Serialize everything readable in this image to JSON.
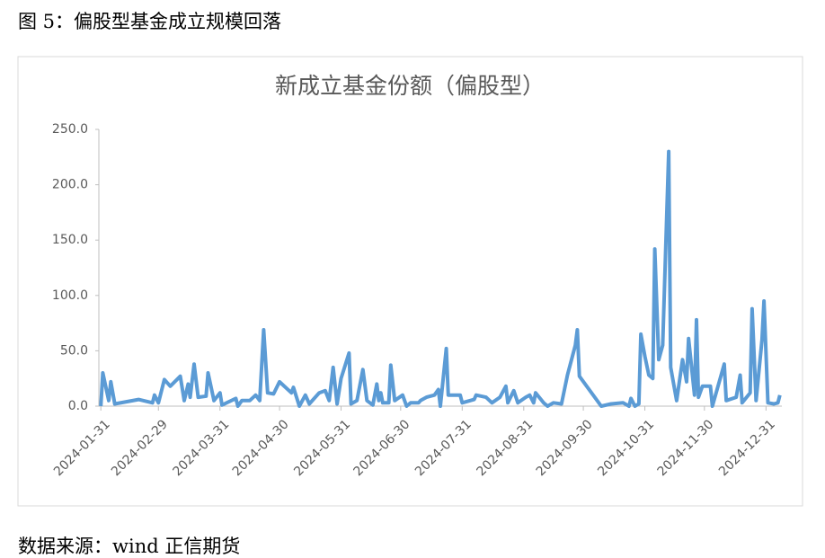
{
  "figure_title": "图 5：偏股型基金成立规模回落",
  "source": "数据来源：wind 正信期货",
  "chart_data": {
    "type": "line",
    "title": "新成立基金份额（偏股型）",
    "xlim": [
      "2024-01-30",
      "2025-01-08"
    ],
    "xticks": [
      "2024-01-31",
      "2024-02-29",
      "2024-03-31",
      "2024-04-30",
      "2024-05-31",
      "2024-06-30",
      "2024-07-31",
      "2024-08-31",
      "2024-09-30",
      "2024-10-31",
      "2024-11-30",
      "2024-12-31"
    ],
    "ylim": [
      0,
      250
    ],
    "yticks": [
      {
        "value": 0,
        "label": "0.0"
      },
      {
        "value": 50,
        "label": "50.0"
      },
      {
        "value": 100,
        "label": "100.0"
      },
      {
        "value": 150,
        "label": "150.0"
      },
      {
        "value": 200,
        "label": "200.0"
      },
      {
        "value": 250,
        "label": "250.0"
      }
    ],
    "grid": false,
    "color": "#5b9bd5",
    "x": [
      "2024-01-31",
      "2024-02-01",
      "2024-02-04",
      "2024-02-05",
      "2024-02-07",
      "2024-02-19",
      "2024-02-26",
      "2024-02-27",
      "2024-02-29",
      "2024-03-03",
      "2024-03-06",
      "2024-03-11",
      "2024-03-13",
      "2024-03-15",
      "2024-03-16",
      "2024-03-18",
      "2024-03-20",
      "2024-03-24",
      "2024-03-25",
      "2024-03-28",
      "2024-03-31",
      "2024-04-01",
      "2024-04-08",
      "2024-04-09",
      "2024-04-11",
      "2024-04-15",
      "2024-04-18",
      "2024-04-20",
      "2024-04-22",
      "2024-04-24",
      "2024-04-27",
      "2024-04-30",
      "2024-05-06",
      "2024-05-07",
      "2024-05-10",
      "2024-05-13",
      "2024-05-15",
      "2024-05-20",
      "2024-05-23",
      "2024-05-25",
      "2024-05-27",
      "2024-05-29",
      "2024-05-31",
      "2024-06-04",
      "2024-06-05",
      "2024-06-08",
      "2024-06-11",
      "2024-06-13",
      "2024-06-16",
      "2024-06-18",
      "2024-06-19",
      "2024-06-20",
      "2024-06-21",
      "2024-06-24",
      "2024-06-25",
      "2024-06-27",
      "2024-07-01",
      "2024-07-03",
      "2024-07-05",
      "2024-07-09",
      "2024-07-10",
      "2024-07-13",
      "2024-07-17",
      "2024-07-19",
      "2024-07-20",
      "2024-07-23",
      "2024-07-24",
      "2024-07-30",
      "2024-07-31",
      "2024-08-06",
      "2024-08-07",
      "2024-08-12",
      "2024-08-15",
      "2024-08-19",
      "2024-08-22",
      "2024-08-23",
      "2024-08-26",
      "2024-08-28",
      "2024-09-01",
      "2024-09-03",
      "2024-09-05",
      "2024-09-06",
      "2024-09-10",
      "2024-09-12",
      "2024-09-15",
      "2024-09-19",
      "2024-09-22",
      "2024-09-26",
      "2024-09-27",
      "2024-09-28",
      "2024-10-09",
      "2024-10-14",
      "2024-10-20",
      "2024-10-23",
      "2024-10-24",
      "2024-10-26",
      "2024-10-28",
      "2024-10-29",
      "2024-10-31",
      "2024-11-02",
      "2024-11-04",
      "2024-11-05",
      "2024-11-07",
      "2024-11-09",
      "2024-11-12",
      "2024-11-13",
      "2024-11-16",
      "2024-11-19",
      "2024-11-21",
      "2024-11-22",
      "2024-11-25",
      "2024-11-26",
      "2024-11-27",
      "2024-11-29",
      "2024-12-03",
      "2024-12-04",
      "2024-12-10",
      "2024-12-11",
      "2024-12-16",
      "2024-12-18",
      "2024-12-19",
      "2024-12-23",
      "2024-12-24",
      "2024-12-26",
      "2024-12-29",
      "2024-12-30",
      "2025-01-01",
      "2025-01-04",
      "2025-01-06",
      "2025-01-07"
    ],
    "values": [
      0,
      30,
      5,
      22,
      2,
      6,
      3,
      10,
      3,
      24,
      18,
      27,
      5,
      20,
      8,
      38,
      8,
      9,
      30,
      5,
      12,
      1,
      7,
      0,
      5,
      5,
      10,
      5,
      69,
      12,
      11,
      22,
      12,
      17,
      0,
      10,
      2,
      12,
      14,
      5,
      35,
      2,
      25,
      48,
      2,
      5,
      33,
      5,
      1,
      20,
      5,
      12,
      3,
      3,
      37,
      5,
      10,
      0,
      3,
      3,
      5,
      8,
      10,
      15,
      0,
      52,
      10,
      10,
      3,
      6,
      10,
      8,
      3,
      8,
      18,
      3,
      14,
      3,
      8,
      10,
      3,
      12,
      3,
      0,
      3,
      2,
      28,
      55,
      69,
      27,
      0,
      2,
      3,
      0,
      7,
      0,
      2,
      65,
      45,
      28,
      25,
      142,
      42,
      55,
      230,
      35,
      5,
      42,
      22,
      61,
      10,
      78,
      8,
      18,
      18,
      0,
      38,
      5,
      8,
      28,
      3,
      12,
      88,
      5,
      60,
      95,
      3,
      2,
      3,
      10
    ]
  }
}
